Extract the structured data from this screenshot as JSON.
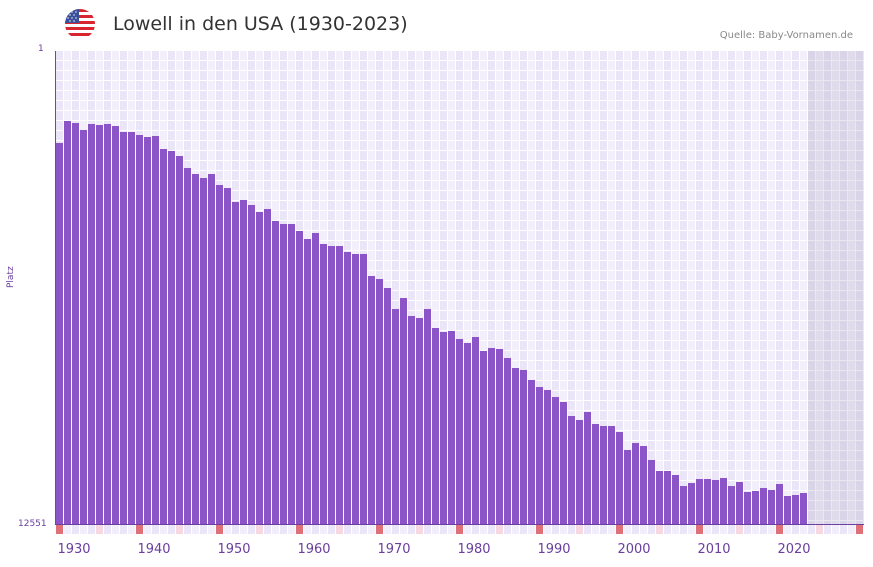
{
  "header": {
    "title": "Lowell in den USA (1930-2023)",
    "source": "Quelle: Baby-Vornamen.de",
    "flag_icon": "us-flag-icon"
  },
  "axis": {
    "y_top_label": "1",
    "y_bottom_label": "12551",
    "y_title": "Platz",
    "x_ticks": [
      "1930",
      "1940",
      "1950",
      "1960",
      "1970",
      "1980",
      "1990",
      "2000",
      "2010",
      "2020"
    ]
  },
  "colors": {
    "bar": "#8c55c7",
    "axis": "#6a3fa0",
    "decade_marker": "#e07078",
    "half_decade_marker": "#f5d8e0",
    "grid_a": "#ebe6f7",
    "grid_b": "#f2effa"
  },
  "chart_data": {
    "type": "bar",
    "title": "Lowell in den USA (1930-2023)",
    "subtitle": "Quelle: Baby-Vornamen.de",
    "xlabel": "",
    "ylabel": "Platz",
    "y_inverted": true,
    "ylim": [
      1,
      12551
    ],
    "xlim": [
      1930,
      2030
    ],
    "grid": true,
    "legend": null,
    "x_tick_labels": [
      "1930",
      "1940",
      "1950",
      "1960",
      "1970",
      "1980",
      "1990",
      "2000",
      "2010",
      "2020"
    ],
    "categories": [
      1930,
      1931,
      1932,
      1933,
      1934,
      1935,
      1936,
      1937,
      1938,
      1939,
      1940,
      1941,
      1942,
      1943,
      1944,
      1945,
      1946,
      1947,
      1948,
      1949,
      1950,
      1951,
      1952,
      1953,
      1954,
      1955,
      1956,
      1957,
      1958,
      1959,
      1960,
      1961,
      1962,
      1963,
      1964,
      1965,
      1966,
      1967,
      1968,
      1969,
      1970,
      1971,
      1972,
      1973,
      1974,
      1975,
      1976,
      1977,
      1978,
      1979,
      1980,
      1981,
      1982,
      1983,
      1984,
      1985,
      1986,
      1987,
      1988,
      1989,
      1990,
      1991,
      1992,
      1993,
      1994,
      1995,
      1996,
      1997,
      1998,
      1999,
      2000,
      2001,
      2002,
      2003,
      2004,
      2005,
      2006,
      2007,
      2008,
      2009,
      2010,
      2011,
      2012,
      2013,
      2014,
      2015,
      2016,
      2017,
      2018,
      2019,
      2020,
      2021,
      2022,
      2023
    ],
    "values": [
      2437,
      1854,
      1907,
      2093,
      1934,
      1960,
      1934,
      1987,
      2146,
      2146,
      2225,
      2278,
      2252,
      2596,
      2649,
      2781,
      3099,
      3258,
      3364,
      3258,
      3549,
      3629,
      3999,
      3946,
      4079,
      4264,
      4185,
      4503,
      4582,
      4582,
      4767,
      4979,
      4820,
      5112,
      5165,
      5165,
      5324,
      5377,
      5377,
      5959,
      6039,
      6277,
      6833,
      6542,
      7018,
      7071,
      6833,
      7336,
      7442,
      7416,
      7628,
      7734,
      7575,
      7945,
      7866,
      7892,
      8131,
      8396,
      8449,
      8713,
      8899,
      8978,
      9164,
      9296,
      9667,
      9773,
      9561,
      9879,
      9932,
      9932,
      10090,
      10567,
      10382,
      10461,
      10832,
      11124,
      11124,
      11229,
      11521,
      11441,
      11336,
      11336,
      11362,
      11309,
      11521,
      11415,
      11680,
      11653,
      11574,
      11627,
      11468,
      11786,
      11759,
      11706
    ]
  }
}
